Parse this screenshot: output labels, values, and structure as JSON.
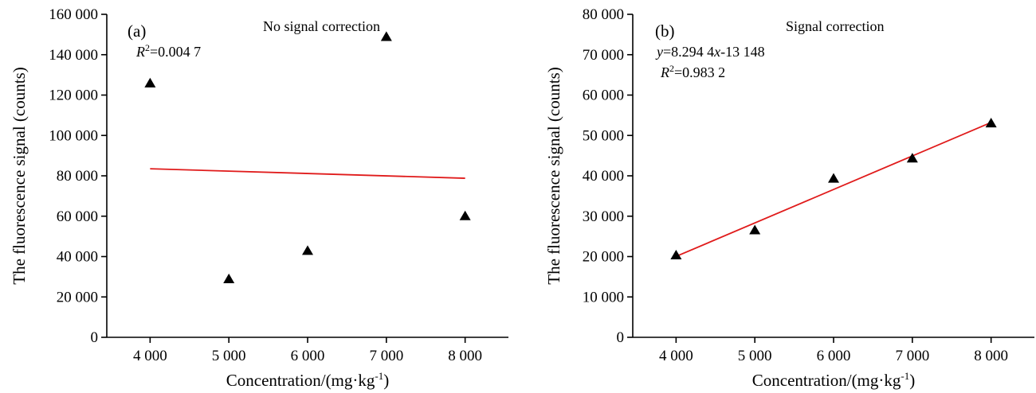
{
  "chart_data": [
    {
      "type": "scatter",
      "panel_label": "(a)",
      "title": "No signal correction",
      "xlabel": "Concentration/(mg·kg",
      "xlabel_sup": "-1",
      "xlabel_close": ")",
      "ylabel": "The fluorescence signal (counts)",
      "xlim": [
        3450,
        8550
      ],
      "ylim": [
        0,
        160000
      ],
      "xticks": [
        4000,
        5000,
        6000,
        7000,
        8000
      ],
      "xtick_labels": [
        "4 000",
        "5 000",
        "6 000",
        "7 000",
        "8 000"
      ],
      "yticks": [
        0,
        20000,
        40000,
        60000,
        80000,
        100000,
        120000,
        140000,
        160000
      ],
      "ytick_labels": [
        "0",
        "20 000",
        "40 000",
        "60 000",
        "80 000",
        "100 000",
        "120 000",
        "140 000",
        "160 000"
      ],
      "grid": false,
      "points": {
        "x": [
          4000,
          5000,
          6000,
          7000,
          8000
        ],
        "y": [
          125800,
          28800,
          42800,
          148800,
          60000
        ]
      },
      "fit_line": {
        "x": [
          4000,
          8000
        ],
        "y": [
          83500,
          78800
        ],
        "color": "#e01b1b"
      },
      "annotation": {
        "r_symbol": "R",
        "r_sup": "2",
        "r_value": "=0.004 7"
      }
    },
    {
      "type": "scatter",
      "panel_label": "(b)",
      "title": "Signal correction",
      "xlabel": "Concentration/(mg·kg",
      "xlabel_sup": "-1",
      "xlabel_close": ")",
      "ylabel": "The fluorescence signal (counts)",
      "xlim": [
        3450,
        8550
      ],
      "ylim": [
        0,
        80000
      ],
      "xticks": [
        4000,
        5000,
        6000,
        7000,
        8000
      ],
      "xtick_labels": [
        "4 000",
        "5 000",
        "6 000",
        "7 000",
        "8 000"
      ],
      "yticks": [
        0,
        10000,
        20000,
        30000,
        40000,
        50000,
        60000,
        70000,
        80000
      ],
      "ytick_labels": [
        "0",
        "10 000",
        "20 000",
        "30 000",
        "40 000",
        "50 000",
        "60 000",
        "70 000",
        "80 000"
      ],
      "grid": false,
      "points": {
        "x": [
          4000,
          5000,
          6000,
          7000,
          8000
        ],
        "y": [
          20300,
          26500,
          39300,
          44300,
          53000
        ]
      },
      "fit_line": {
        "x": [
          4000,
          8000
        ],
        "y": [
          20030,
          53210
        ],
        "color": "#e01b1b"
      },
      "annotation": {
        "eq_y": "y",
        "eq_mid": "=8.294 4",
        "eq_x": "x",
        "eq_end": "-13 148",
        "r_symbol": "R",
        "r_sup": "2",
        "r_value": "=0.983 2"
      }
    }
  ]
}
